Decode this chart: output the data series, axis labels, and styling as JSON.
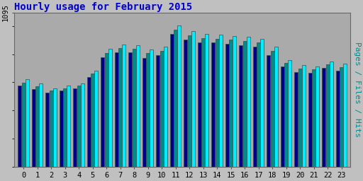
{
  "title": "Hourly usage for February 2015",
  "hours": [
    0,
    1,
    2,
    3,
    4,
    5,
    6,
    7,
    8,
    9,
    10,
    11,
    12,
    13,
    14,
    15,
    16,
    17,
    18,
    19,
    20,
    21,
    22,
    23
  ],
  "hits": [
    620,
    590,
    555,
    575,
    590,
    680,
    840,
    870,
    865,
    835,
    855,
    1005,
    965,
    945,
    940,
    930,
    925,
    910,
    855,
    760,
    720,
    710,
    750,
    730
  ],
  "files": [
    595,
    570,
    540,
    558,
    575,
    660,
    810,
    842,
    840,
    808,
    825,
    975,
    935,
    912,
    910,
    902,
    892,
    882,
    822,
    738,
    697,
    692,
    727,
    707
  ],
  "pages": [
    575,
    552,
    525,
    542,
    558,
    638,
    778,
    812,
    812,
    775,
    795,
    945,
    903,
    882,
    882,
    872,
    862,
    852,
    792,
    713,
    673,
    667,
    702,
    682
  ],
  "ytick_label": "1095",
  "ylabel": "Pages / Files / Hits",
  "color_hits": "#00EEFF",
  "color_files": "#008B8B",
  "color_pages": "#00008B",
  "color_edge": "#2F4F4F",
  "bg_color": "#C0C0C0",
  "plot_bg_color": "#AAAAAA",
  "title_color": "#0000CC",
  "ylabel_color": "#008B8B",
  "ylim_max": 1095,
  "title_fontsize": 10,
  "tick_fontsize": 7.5,
  "ylabel_fontsize": 8
}
